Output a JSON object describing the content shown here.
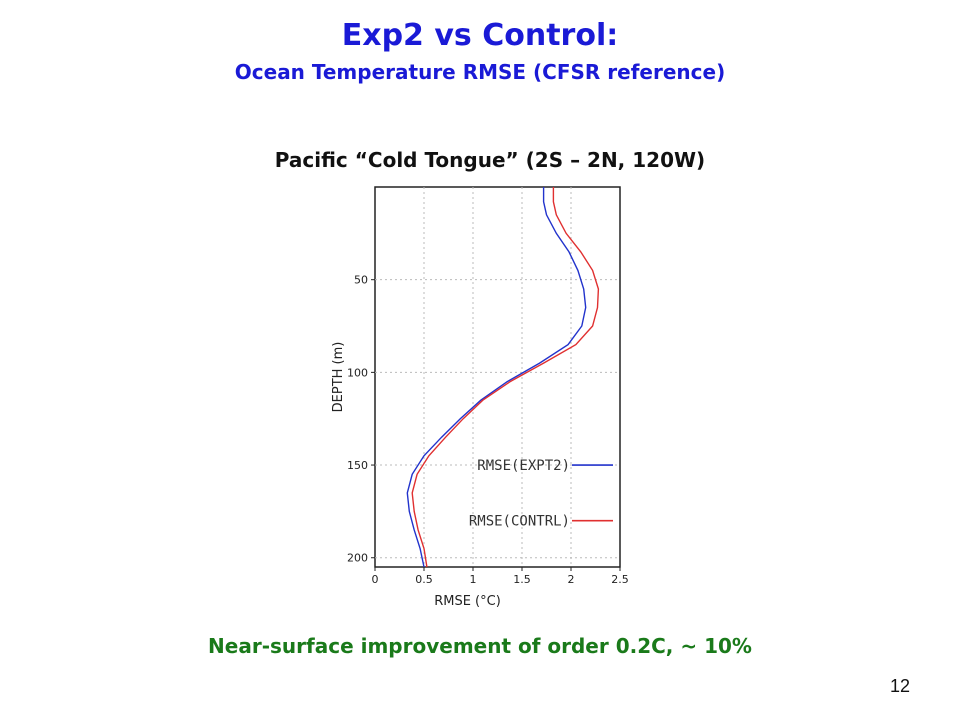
{
  "slide": {
    "title": "Exp2 vs Control:",
    "subtitle": "Ocean Temperature RMSE (CFSR reference)",
    "panel_title": "Pacific “Cold Tongue” (2S – 2N, 120W)",
    "note": "Near-surface improvement of order 0.2C,  ~ 10%",
    "page_number": "12"
  },
  "chart_data": {
    "type": "line",
    "xlabel": "RMSE (°C)",
    "ylabel": "DEPTH (m)",
    "xlim": [
      0,
      2.5
    ],
    "ylim": [
      205,
      0
    ],
    "y_inverted": true,
    "grid": true,
    "grid_style": "dotted",
    "legend_placement": "inline-right",
    "x_ticks": [
      "0",
      "0.5",
      "1",
      "1.5",
      "2",
      "2.5"
    ],
    "y_ticks": [
      "50",
      "100",
      "150",
      "200"
    ],
    "series": [
      {
        "name": "RMSE(EXPT2)",
        "color": "#2233cc",
        "points": [
          [
            1.72,
            0
          ],
          [
            1.72,
            8
          ],
          [
            1.75,
            15
          ],
          [
            1.85,
            25
          ],
          [
            1.98,
            35
          ],
          [
            2.07,
            45
          ],
          [
            2.13,
            55
          ],
          [
            2.15,
            65
          ],
          [
            2.11,
            75
          ],
          [
            1.97,
            85
          ],
          [
            1.68,
            95
          ],
          [
            1.35,
            105
          ],
          [
            1.08,
            115
          ],
          [
            0.87,
            125
          ],
          [
            0.68,
            135
          ],
          [
            0.5,
            145
          ],
          [
            0.38,
            155
          ],
          [
            0.33,
            165
          ],
          [
            0.35,
            175
          ],
          [
            0.4,
            185
          ],
          [
            0.46,
            195
          ],
          [
            0.5,
            205
          ]
        ]
      },
      {
        "name": "RMSE(CONTRL)",
        "color": "#e03030",
        "points": [
          [
            1.82,
            0
          ],
          [
            1.82,
            8
          ],
          [
            1.85,
            15
          ],
          [
            1.95,
            25
          ],
          [
            2.1,
            35
          ],
          [
            2.22,
            45
          ],
          [
            2.28,
            55
          ],
          [
            2.27,
            65
          ],
          [
            2.22,
            75
          ],
          [
            2.05,
            85
          ],
          [
            1.72,
            95
          ],
          [
            1.38,
            105
          ],
          [
            1.1,
            115
          ],
          [
            0.9,
            125
          ],
          [
            0.72,
            135
          ],
          [
            0.55,
            145
          ],
          [
            0.43,
            155
          ],
          [
            0.38,
            165
          ],
          [
            0.4,
            175
          ],
          [
            0.44,
            185
          ],
          [
            0.5,
            195
          ],
          [
            0.53,
            205
          ]
        ]
      }
    ]
  }
}
